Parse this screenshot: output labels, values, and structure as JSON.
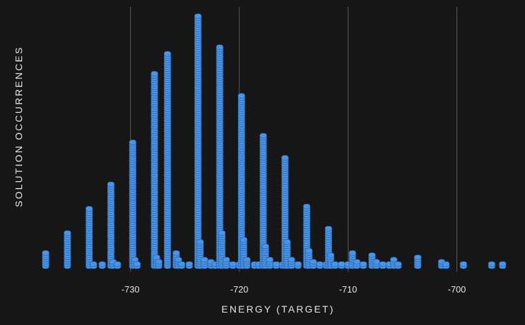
{
  "chart_data": {
    "type": "scatter",
    "title": "",
    "xlabel": "ENERGY (TARGET)",
    "ylabel": "SOLUTION OCCURRENCES",
    "xlim": [
      -738.5,
      -694.5
    ],
    "ylim": [
      0,
      370
    ],
    "xticks": [
      -730,
      -720,
      -710,
      -700
    ],
    "xtick_labels": [
      "-730",
      "-720",
      "-710",
      "-700"
    ],
    "grid": "vertical",
    "legend": "none",
    "marker_color": "#4a93e6",
    "series": [
      {
        "x": [
          -737.8,
          -735.8,
          -733.8,
          -733.4,
          -732.6,
          -731.8,
          -731.6,
          -731.2,
          -729.8,
          -729.6,
          -729.4,
          -727.8,
          -727.6,
          -727.4,
          -726.6,
          -725.8,
          -725.6,
          -725.3,
          -724.6,
          -723.8,
          -723.6,
          -723.2,
          -722.6,
          -722.2,
          -721.8,
          -721.6,
          -721.2,
          -720.6,
          -720.0,
          -719.8,
          -719.6,
          -719.3,
          -718.6,
          -718.2,
          -717.8,
          -717.6,
          -717.2,
          -716.6,
          -716.0,
          -715.8,
          -715.6,
          -715.2,
          -714.6,
          -713.8,
          -713.6,
          -713.2,
          -712.6,
          -712.0,
          -711.8,
          -711.6,
          -711.2,
          -710.6,
          -710.0,
          -709.6,
          -709.2,
          -708.6,
          -707.8,
          -707.4,
          -706.8,
          -706.2,
          -705.8,
          -705.4,
          -703.6,
          -701.4,
          -701.0,
          -699.4,
          -696.8,
          -695.8
        ],
        "y": [
          20,
          52,
          85,
          6,
          4,
          122,
          8,
          5,
          185,
          12,
          6,
          285,
          14,
          8,
          313,
          20,
          10,
          6,
          6,
          370,
          36,
          10,
          8,
          6,
          325,
          52,
          10,
          4,
          4,
          252,
          40,
          10,
          5,
          4,
          192,
          32,
          10,
          6,
          4,
          162,
          38,
          10,
          5,
          90,
          26,
          8,
          5,
          4,
          58,
          18,
          6,
          4,
          4,
          20,
          8,
          4,
          18,
          8,
          4,
          4,
          12,
          6,
          14,
          8,
          4,
          4,
          4,
          4
        ]
      }
    ]
  }
}
